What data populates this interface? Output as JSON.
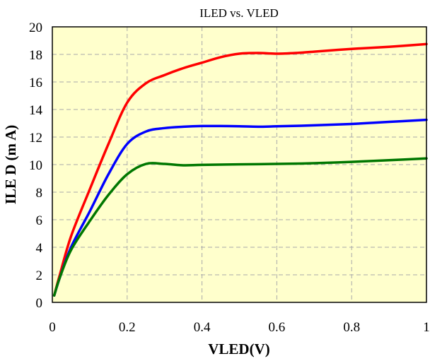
{
  "chart_data": {
    "type": "line",
    "title": "ILED vs. VLED",
    "xlabel": "VLED(V)",
    "ylabel": "ILE D (m A)",
    "xlim": [
      0,
      1
    ],
    "ylim": [
      0,
      20
    ],
    "xticks": [
      0,
      0.2,
      0.4,
      0.6,
      0.8,
      1
    ],
    "xtick_labels": [
      "0",
      "0.2",
      "0.4",
      "0.6",
      "0.8",
      "1"
    ],
    "yticks": [
      0,
      2,
      4,
      6,
      8,
      10,
      12,
      14,
      16,
      18,
      20
    ],
    "ytick_labels": [
      "0",
      "2",
      "4",
      "6",
      "8",
      "10",
      "12",
      "14",
      "16",
      "18",
      "20"
    ],
    "grid": true,
    "legend": "none",
    "plot_background": "#ffffcc",
    "series": [
      {
        "color": "#ff0000",
        "x": [
          0.005,
          0.02,
          0.05,
          0.1,
          0.15,
          0.2,
          0.25,
          0.3,
          0.35,
          0.4,
          0.45,
          0.5,
          0.55,
          0.6,
          0.65,
          0.7,
          0.8,
          0.9,
          1.0
        ],
        "y": [
          0.5,
          2.0,
          4.8,
          8.2,
          11.5,
          14.5,
          15.9,
          16.5,
          17.0,
          17.4,
          17.8,
          18.05,
          18.1,
          18.05,
          18.1,
          18.2,
          18.4,
          18.55,
          18.75
        ]
      },
      {
        "color": "#0000ff",
        "x": [
          0.005,
          0.02,
          0.05,
          0.1,
          0.15,
          0.2,
          0.25,
          0.3,
          0.35,
          0.4,
          0.45,
          0.5,
          0.55,
          0.6,
          0.7,
          0.8,
          0.9,
          1.0
        ],
        "y": [
          0.5,
          1.8,
          4.0,
          6.6,
          9.3,
          11.5,
          12.4,
          12.65,
          12.75,
          12.8,
          12.8,
          12.78,
          12.75,
          12.78,
          12.85,
          12.95,
          13.1,
          13.25
        ]
      },
      {
        "color": "#007700",
        "x": [
          0.005,
          0.02,
          0.05,
          0.1,
          0.15,
          0.2,
          0.25,
          0.3,
          0.35,
          0.4,
          0.5,
          0.6,
          0.7,
          0.8,
          0.9,
          1.0
        ],
        "y": [
          0.5,
          1.8,
          3.8,
          5.9,
          7.8,
          9.3,
          10.05,
          10.05,
          9.95,
          9.98,
          10.02,
          10.05,
          10.1,
          10.2,
          10.32,
          10.45
        ]
      }
    ]
  }
}
